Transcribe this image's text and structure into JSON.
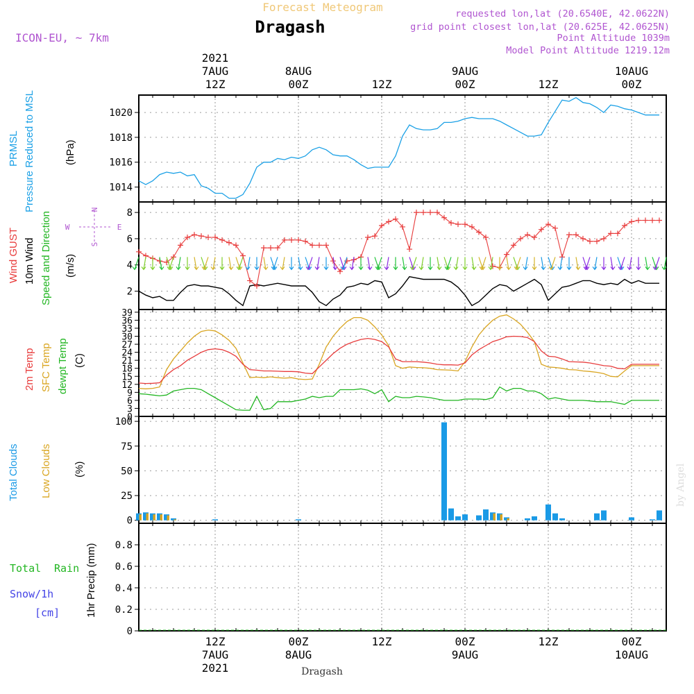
{
  "header": {
    "top_title": "Forecast Meteogram",
    "location": "Dragash",
    "model": "ICON-EU, ~ 7km",
    "requested": "requested lon,lat (20.6540E, 42.0622N)",
    "grid_point": "grid point closest lon,lat (20.625E, 42.0625N)",
    "point_altitude": "Point Altitude 1039m",
    "model_point_altitude": "Model Point Altitude 1219.12m",
    "footer_location": "Dragash",
    "credit": "by Angel"
  },
  "colors": {
    "pressure": "#1aa0e6",
    "gust": "#e83c3c",
    "wind": "#000000",
    "temp2m": "#e83c3c",
    "sfc_temp": "#d9a520",
    "dewpt": "#22b622",
    "total_clouds": "#1a9ae6",
    "low_clouds": "#d9a520",
    "rain": "#22b622",
    "snow": "#4444e6",
    "compass": "#b055d0",
    "title_top": "#f0c878",
    "info_text": "#b055d0",
    "grid": "#999999"
  },
  "time_axis": {
    "top_labels": [
      {
        "t": 0,
        "lines": [
          "2021",
          "7AUG",
          "12Z"
        ]
      },
      {
        "t": 12,
        "lines": [
          "8AUG",
          "00Z"
        ]
      },
      {
        "t": 24,
        "lines": [
          "12Z"
        ]
      },
      {
        "t": 36,
        "lines": [
          "9AUG",
          "00Z"
        ]
      },
      {
        "t": 48,
        "lines": [
          "12Z"
        ]
      },
      {
        "t": 60,
        "lines": [
          "10AUG",
          "00Z"
        ]
      }
    ],
    "bottom_labels": [
      {
        "t": 0,
        "lines": [
          "12Z",
          "7AUG",
          "2021"
        ]
      },
      {
        "t": 12,
        "lines": [
          "00Z",
          "8AUG"
        ]
      },
      {
        "t": 24,
        "lines": [
          "12Z"
        ]
      },
      {
        "t": 36,
        "lines": [
          "00Z",
          "9AUG"
        ]
      },
      {
        "t": 48,
        "lines": [
          "12Z"
        ]
      },
      {
        "t": 60,
        "lines": [
          "00Z",
          "10AUG"
        ]
      }
    ]
  },
  "panel_labels": {
    "pressure": {
      "name": "PRMSL",
      "desc": "Pressure Reduced to MSL",
      "unit": "(hPa)"
    },
    "wind": {
      "gust": "Wind GUST",
      "wind": "10m Wind",
      "dir": "Speed and Direction",
      "unit": "(m/s)",
      "compass_n": "N",
      "compass_s": "S",
      "compass_w": "W",
      "compass_e": "E"
    },
    "temp": {
      "t2m": "2m Temp",
      "sfc": "SFC Temp",
      "dew": "dewpt Temp",
      "unit": "(C)"
    },
    "clouds": {
      "total": "Total Clouds",
      "low": "Low Clouds",
      "unit": "(%)"
    },
    "precip": {
      "rain_a": "Total",
      "rain_b": "Rain",
      "snow": "Snow/1h",
      "snow_unit": "[cm]",
      "axis": "1hr Precip (mm)"
    }
  },
  "chart_data": [
    {
      "type": "line",
      "panel": "pressure",
      "ylabel": "Pressure Reduced to MSL (hPa)",
      "ylim": [
        1012.8,
        1021.4
      ],
      "yticks": [
        1014,
        1016,
        1018,
        1020
      ],
      "x_hours_from_7AUG_12Z": [
        -11,
        -10,
        -9,
        -8,
        -7,
        -6,
        -5,
        -4,
        -3,
        -2,
        -1,
        0,
        1,
        2,
        3,
        4,
        5,
        6,
        7,
        8,
        9,
        10,
        11,
        12,
        13,
        14,
        15,
        16,
        17,
        18,
        19,
        20,
        21,
        22,
        23,
        24,
        25,
        26,
        27,
        28,
        29,
        30,
        31,
        32,
        33,
        34,
        35,
        36,
        37,
        38,
        39,
        40,
        41,
        42,
        43,
        44,
        45,
        46,
        47,
        48,
        49,
        50,
        51,
        52,
        53,
        54,
        55,
        56,
        57,
        58,
        59,
        60,
        61,
        62,
        63,
        64,
        65
      ],
      "series": [
        {
          "name": "PRMSL",
          "values": [
            1014.5,
            1014.2,
            1014.5,
            1015.0,
            1015.2,
            1015.1,
            1015.2,
            1014.9,
            1015.0,
            1014.1,
            1013.9,
            1013.5,
            1013.5,
            1013.1,
            1013.1,
            1013.4,
            1014.3,
            1015.6,
            1016.0,
            1016.0,
            1016.3,
            1016.2,
            1016.4,
            1016.3,
            1016.5,
            1017.0,
            1017.2,
            1017.0,
            1016.6,
            1016.5,
            1016.5,
            1016.2,
            1015.8,
            1015.5,
            1015.6,
            1015.6,
            1015.6,
            1016.5,
            1018.1,
            1019.0,
            1018.7,
            1018.6,
            1018.6,
            1018.7,
            1019.2,
            1019.2,
            1019.3,
            1019.5,
            1019.6,
            1019.5,
            1019.5,
            1019.5,
            1019.3,
            1019.0,
            1018.7,
            1018.4,
            1018.1,
            1018.1,
            1018.2,
            1019.2,
            1020.1,
            1021.0,
            1020.9,
            1021.2,
            1020.8,
            1020.7,
            1020.4,
            1020.0,
            1020.6,
            1020.5,
            1020.3,
            1020.2,
            1020.0,
            1019.8,
            1019.8,
            1019.8
          ]
        }
      ]
    },
    {
      "type": "line",
      "panel": "wind",
      "ylabel": "Speed and Direction (m/s)",
      "ylim": [
        0.6,
        8.8
      ],
      "yticks": [
        2,
        4,
        6,
        8
      ],
      "x_hours_from_7AUG_12Z": [
        -11,
        -10,
        -9,
        -8,
        -7,
        -6,
        -5,
        -4,
        -3,
        -2,
        -1,
        0,
        1,
        2,
        3,
        4,
        5,
        6,
        7,
        8,
        9,
        10,
        11,
        12,
        13,
        14,
        15,
        16,
        17,
        18,
        19,
        20,
        21,
        22,
        23,
        24,
        25,
        26,
        27,
        28,
        29,
        30,
        31,
        32,
        33,
        34,
        35,
        36,
        37,
        38,
        39,
        40,
        41,
        42,
        43,
        44,
        45,
        46,
        47,
        48,
        49,
        50,
        51,
        52,
        53,
        54,
        55,
        56,
        57,
        58,
        59,
        60,
        61,
        62,
        63,
        64,
        65
      ],
      "series": [
        {
          "name": "Wind GUST",
          "values": [
            5.0,
            4.7,
            4.5,
            4.3,
            4.2,
            4.6,
            5.5,
            6.1,
            6.3,
            6.2,
            6.1,
            6.1,
            5.9,
            5.7,
            5.5,
            4.7,
            2.8,
            2.4,
            5.3,
            5.3,
            5.3,
            5.9,
            5.9,
            5.9,
            5.8,
            5.5,
            5.5,
            5.5,
            4.3,
            3.5,
            4.3,
            4.4,
            4.6,
            6.1,
            6.2,
            7.0,
            7.3,
            7.5,
            6.9,
            5.2,
            8.0,
            8.0,
            8.0,
            8.0,
            7.6,
            7.2,
            7.1,
            7.1,
            6.9,
            6.5,
            6.1,
            3.9,
            3.8,
            4.8,
            5.5,
            6.0,
            6.3,
            6.1,
            6.7,
            7.1,
            6.8,
            4.6,
            6.3,
            6.3,
            6.0,
            5.8,
            5.8,
            6.0,
            6.4,
            6.4,
            7.0,
            7.3,
            7.4,
            7.4,
            7.4,
            7.4
          ]
        },
        {
          "name": "10m Wind",
          "values": [
            2.0,
            1.7,
            1.5,
            1.6,
            1.3,
            1.3,
            1.9,
            2.4,
            2.5,
            2.4,
            2.4,
            2.3,
            2.2,
            1.8,
            1.3,
            0.9,
            2.4,
            2.5,
            2.4,
            2.5,
            2.6,
            2.5,
            2.4,
            2.4,
            2.4,
            1.9,
            1.2,
            0.9,
            1.4,
            1.7,
            2.3,
            2.4,
            2.6,
            2.5,
            2.8,
            2.7,
            1.5,
            1.8,
            2.4,
            3.1,
            3.0,
            2.9,
            2.9,
            2.9,
            2.9,
            2.7,
            2.3,
            1.7,
            0.9,
            1.2,
            1.7,
            2.2,
            2.5,
            2.4,
            2.0,
            2.3,
            2.6,
            2.9,
            2.5,
            1.3,
            1.8,
            2.3,
            2.4,
            2.6,
            2.8,
            2.8,
            2.6,
            2.5,
            2.6,
            2.5,
            2.9,
            2.6,
            2.8,
            2.6,
            2.6,
            2.6
          ]
        }
      ]
    },
    {
      "type": "line",
      "panel": "temperature",
      "ylabel": "(C)",
      "ylim": [
        0,
        40
      ],
      "yticks": [
        0,
        3,
        6,
        9,
        12,
        15,
        18,
        21,
        24,
        27,
        30,
        33,
        36,
        39
      ],
      "x_hours_from_7AUG_12Z": [
        -11,
        -10,
        -9,
        -8,
        -7,
        -6,
        -5,
        -4,
        -3,
        -2,
        -1,
        0,
        1,
        2,
        3,
        4,
        5,
        6,
        7,
        8,
        9,
        10,
        11,
        12,
        13,
        14,
        15,
        16,
        17,
        18,
        19,
        20,
        21,
        22,
        23,
        24,
        25,
        26,
        27,
        28,
        29,
        30,
        31,
        32,
        33,
        34,
        35,
        36,
        37,
        38,
        39,
        40,
        41,
        42,
        43,
        44,
        45,
        46,
        47,
        48,
        49,
        50,
        51,
        52,
        53,
        54,
        55,
        56,
        57,
        58,
        59,
        60,
        61,
        62,
        63,
        64,
        65
      ],
      "series": [
        {
          "name": "2m Temp",
          "values": [
            12.5,
            12.3,
            12.4,
            12.6,
            15.5,
            17.5,
            19.0,
            21.0,
            22.5,
            24.0,
            25.0,
            25.3,
            25.0,
            24.0,
            22.5,
            19.5,
            17.5,
            17.3,
            17.0,
            17.0,
            16.9,
            16.8,
            16.8,
            16.7,
            16.2,
            16.0,
            18.5,
            21.0,
            23.5,
            25.5,
            27.0,
            28.0,
            28.8,
            29.2,
            28.8,
            28.0,
            26.0,
            21.5,
            20.5,
            20.5,
            20.5,
            20.3,
            20.0,
            19.5,
            19.3,
            19.3,
            19.2,
            20.0,
            23.0,
            25.0,
            26.5,
            28.0,
            28.8,
            29.8,
            30.0,
            29.9,
            29.5,
            28.0,
            24.5,
            22.5,
            22.3,
            21.5,
            20.5,
            20.4,
            20.3,
            20.0,
            19.5,
            19.0,
            18.8,
            18.0,
            17.8,
            19.5,
            19.5,
            19.5,
            19.5,
            19.5
          ]
        },
        {
          "name": "SFC Temp",
          "values": [
            10.5,
            10.3,
            10.5,
            11.0,
            17.5,
            21.5,
            24.5,
            27.5,
            30.0,
            31.8,
            32.3,
            32.0,
            30.5,
            28.5,
            25.5,
            20.0,
            14.5,
            14.7,
            14.5,
            14.8,
            14.5,
            14.3,
            14.5,
            14.0,
            13.8,
            14.0,
            19.5,
            26.0,
            30.0,
            33.0,
            35.5,
            37.0,
            37.0,
            36.0,
            33.5,
            30.5,
            26.5,
            19.0,
            18.0,
            18.5,
            18.3,
            18.2,
            18.0,
            17.5,
            17.4,
            17.3,
            17.0,
            20.5,
            26.0,
            30.5,
            33.5,
            36.0,
            37.5,
            38.0,
            36.5,
            34.5,
            31.5,
            28.0,
            19.5,
            18.5,
            18.3,
            18.0,
            17.5,
            17.4,
            17.0,
            16.8,
            16.5,
            16.0,
            15.0,
            14.8,
            17.0,
            19.0,
            19.0,
            19.0,
            19.0,
            19.0
          ]
        },
        {
          "name": "dewpt Temp",
          "values": [
            8.5,
            8.3,
            8.0,
            7.7,
            8.0,
            9.5,
            10.0,
            10.5,
            10.5,
            10.0,
            8.5,
            7.0,
            5.5,
            4.0,
            2.5,
            2.3,
            2.3,
            7.5,
            2.5,
            3.0,
            5.5,
            5.5,
            5.5,
            6.0,
            6.5,
            7.5,
            7.0,
            7.5,
            7.5,
            10.0,
            10.0,
            10.0,
            10.3,
            9.8,
            8.5,
            10.0,
            5.5,
            7.5,
            7.0,
            7.0,
            7.5,
            7.3,
            7.0,
            6.5,
            6.0,
            6.0,
            6.0,
            6.5,
            6.5,
            6.5,
            6.3,
            7.0,
            11.0,
            9.5,
            10.5,
            10.5,
            9.5,
            9.5,
            8.5,
            6.5,
            7.0,
            6.5,
            6.0,
            6.0,
            6.0,
            5.8,
            5.5,
            5.5,
            5.5,
            5.0,
            4.5,
            6.0,
            6.0,
            6.0,
            6.0,
            6.0
          ]
        }
      ]
    },
    {
      "type": "bar",
      "panel": "clouds",
      "ylabel": "(%)",
      "ylim": [
        -3,
        105
      ],
      "yticks": [
        0,
        25,
        50,
        75,
        100
      ],
      "x_hours_from_7AUG_12Z": [
        -11,
        -10,
        -9,
        -8,
        -7,
        -6,
        -5,
        -4,
        -3,
        -2,
        -1,
        0,
        1,
        2,
        3,
        4,
        5,
        6,
        7,
        8,
        9,
        10,
        11,
        12,
        13,
        14,
        15,
        16,
        17,
        18,
        19,
        20,
        21,
        22,
        23,
        24,
        25,
        26,
        27,
        28,
        29,
        30,
        31,
        32,
        33,
        34,
        35,
        36,
        37,
        38,
        39,
        40,
        41,
        42,
        43,
        44,
        45,
        46,
        47,
        48,
        49,
        50,
        51,
        52,
        53,
        54,
        55,
        56,
        57,
        58,
        59,
        60,
        61,
        62,
        63,
        64,
        65
      ],
      "series": [
        {
          "name": "Total Clouds",
          "values": [
            7,
            8,
            7,
            7,
            6,
            2,
            0,
            0,
            0,
            0,
            0,
            1,
            0,
            0,
            0,
            0,
            0,
            0,
            0,
            0,
            0,
            0,
            0,
            1,
            0,
            0,
            0,
            0,
            0,
            0,
            0,
            0,
            0,
            0,
            0,
            0,
            0,
            0,
            0,
            0,
            0,
            0,
            0,
            0,
            99,
            12,
            4,
            6,
            0,
            5,
            11,
            8,
            7,
            3,
            0,
            0,
            2,
            4,
            0,
            16,
            7,
            2,
            0,
            0,
            0,
            0,
            7,
            10,
            0,
            0,
            0,
            3,
            0,
            0,
            1,
            10
          ]
        },
        {
          "name": "Low Clouds",
          "values": [
            6,
            7,
            6,
            6,
            5,
            1,
            0,
            0,
            0,
            0,
            0,
            0,
            0,
            0,
            0,
            0,
            0,
            0,
            0,
            0,
            0,
            0,
            0,
            0,
            0,
            0,
            0,
            0,
            0,
            0,
            0,
            0,
            0,
            0,
            0,
            0,
            0,
            0,
            0,
            0,
            0,
            0,
            0,
            0,
            0,
            0,
            0,
            0,
            0,
            0,
            0,
            7,
            6,
            2,
            0,
            0,
            0,
            0,
            0,
            0,
            0,
            0,
            0,
            0,
            0,
            0,
            0,
            0,
            0,
            0,
            0,
            0,
            0,
            0,
            0,
            0
          ]
        }
      ]
    },
    {
      "type": "line",
      "panel": "precipitation",
      "ylabel": "1hr Precip (mm)",
      "ylim": [
        0,
        1.0
      ],
      "yticks": [
        0,
        0.2,
        0.4,
        0.6,
        0.8
      ],
      "series": [
        {
          "name": "Total Rain",
          "values": [
            0
          ]
        },
        {
          "name": "Snow/1h",
          "values": [
            0
          ]
        }
      ]
    }
  ]
}
